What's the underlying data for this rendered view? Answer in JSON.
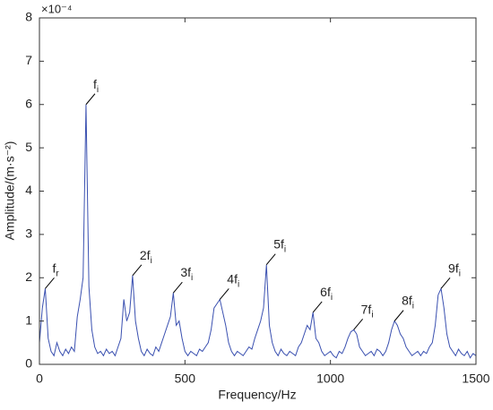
{
  "chart_data": {
    "type": "line",
    "xlabel": "Frequency/Hz",
    "ylabel": "Amplitude/(m·s⁻²)",
    "y_scale_label": "×10⁻⁴",
    "xlim": [
      0,
      1500
    ],
    "xticks": [
      0,
      500,
      1000,
      1500
    ],
    "ylim": [
      0,
      8
    ],
    "yticks": [
      0,
      1,
      2,
      3,
      4,
      5,
      6,
      7,
      8
    ],
    "grid": false,
    "series": [
      {
        "color": "#3a50b0",
        "x": [
          0,
          10,
          20,
          30,
          40,
          50,
          60,
          70,
          80,
          90,
          100,
          110,
          120,
          130,
          140,
          150,
          160,
          170,
          180,
          190,
          200,
          210,
          220,
          230,
          240,
          250,
          260,
          270,
          280,
          290,
          300,
          310,
          320,
          330,
          340,
          350,
          360,
          370,
          380,
          390,
          400,
          410,
          420,
          430,
          440,
          450,
          460,
          470,
          480,
          490,
          500,
          510,
          520,
          530,
          540,
          550,
          560,
          570,
          580,
          590,
          600,
          610,
          620,
          630,
          640,
          650,
          660,
          670,
          680,
          690,
          700,
          710,
          720,
          730,
          740,
          750,
          760,
          770,
          780,
          790,
          800,
          810,
          820,
          830,
          840,
          850,
          860,
          870,
          880,
          890,
          900,
          910,
          920,
          930,
          940,
          950,
          960,
          970,
          980,
          990,
          1000,
          1010,
          1020,
          1030,
          1040,
          1050,
          1060,
          1070,
          1080,
          1090,
          1100,
          1110,
          1120,
          1130,
          1140,
          1150,
          1160,
          1170,
          1180,
          1190,
          1200,
          1210,
          1220,
          1230,
          1240,
          1250,
          1260,
          1270,
          1280,
          1290,
          1300,
          1310,
          1320,
          1330,
          1340,
          1350,
          1360,
          1370,
          1380,
          1390,
          1400,
          1410,
          1420,
          1430,
          1440,
          1450,
          1460,
          1470,
          1480,
          1490,
          1500
        ],
        "values": [
          0.5,
          1.3,
          1.75,
          0.6,
          0.3,
          0.2,
          0.5,
          0.3,
          0.2,
          0.35,
          0.25,
          0.4,
          0.3,
          1.1,
          1.5,
          2.0,
          6.0,
          1.8,
          0.8,
          0.4,
          0.25,
          0.3,
          0.2,
          0.35,
          0.25,
          0.3,
          0.2,
          0.4,
          0.6,
          1.5,
          1.0,
          1.2,
          2.05,
          1.0,
          0.6,
          0.3,
          0.2,
          0.35,
          0.25,
          0.2,
          0.4,
          0.3,
          0.5,
          0.7,
          0.9,
          1.1,
          1.65,
          0.9,
          1.0,
          0.6,
          0.3,
          0.2,
          0.3,
          0.25,
          0.2,
          0.35,
          0.3,
          0.4,
          0.5,
          0.8,
          1.3,
          1.4,
          1.5,
          1.2,
          0.9,
          0.5,
          0.3,
          0.2,
          0.3,
          0.25,
          0.2,
          0.3,
          0.4,
          0.35,
          0.6,
          0.8,
          1.0,
          1.3,
          2.3,
          0.9,
          0.5,
          0.3,
          0.2,
          0.35,
          0.25,
          0.2,
          0.3,
          0.25,
          0.2,
          0.4,
          0.5,
          0.7,
          0.9,
          0.8,
          1.2,
          0.6,
          0.5,
          0.3,
          0.2,
          0.25,
          0.3,
          0.2,
          0.15,
          0.3,
          0.25,
          0.4,
          0.6,
          0.75,
          0.8,
          0.7,
          0.4,
          0.3,
          0.2,
          0.25,
          0.3,
          0.2,
          0.35,
          0.3,
          0.2,
          0.3,
          0.5,
          0.8,
          1.0,
          0.9,
          0.7,
          0.6,
          0.4,
          0.3,
          0.2,
          0.25,
          0.3,
          0.2,
          0.3,
          0.25,
          0.4,
          0.5,
          0.9,
          1.6,
          1.75,
          1.3,
          0.7,
          0.4,
          0.3,
          0.2,
          0.35,
          0.25,
          0.2,
          0.3,
          0.15,
          0.25,
          0.2
        ]
      }
    ],
    "annotations": [
      {
        "label": "f",
        "subscript": "r",
        "x": 20,
        "y": 1.75
      },
      {
        "label": "f",
        "subscript": "i",
        "x": 160,
        "y": 6.0
      },
      {
        "label": "2f",
        "subscript": "i",
        "x": 320,
        "y": 2.05
      },
      {
        "label": "3f",
        "subscript": "i",
        "x": 460,
        "y": 1.65
      },
      {
        "label": "4f",
        "subscript": "i",
        "x": 620,
        "y": 1.5
      },
      {
        "label": "5f",
        "subscript": "i",
        "x": 780,
        "y": 2.3
      },
      {
        "label": "6f",
        "subscript": "i",
        "x": 940,
        "y": 1.2
      },
      {
        "label": "7f",
        "subscript": "i",
        "x": 1080,
        "y": 0.8
      },
      {
        "label": "8f",
        "subscript": "i",
        "x": 1220,
        "y": 1.0
      },
      {
        "label": "9f",
        "subscript": "i",
        "x": 1380,
        "y": 1.75
      }
    ]
  }
}
